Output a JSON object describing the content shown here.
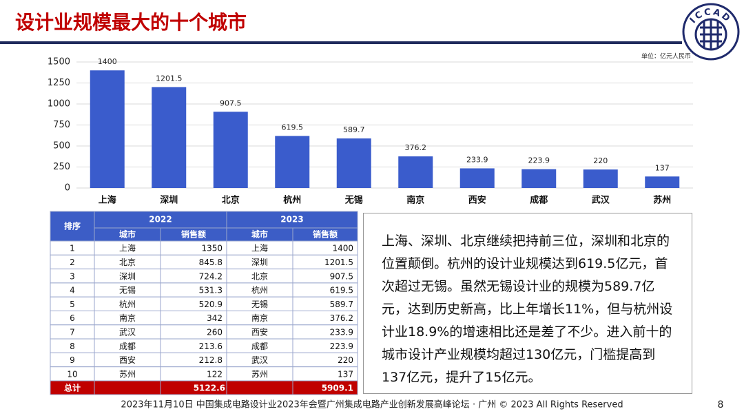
{
  "header": {
    "title": "设计业规模最大的十个城市",
    "logo": "ICCAD"
  },
  "chart_data": {
    "type": "bar",
    "unit": "单位：亿元人民币",
    "categories": [
      "上海",
      "深圳",
      "北京",
      "杭州",
      "无锡",
      "南京",
      "西安",
      "成都",
      "武汉",
      "苏州"
    ],
    "values": [
      1400,
      1201.5,
      907.5,
      619.5,
      589.7,
      376.2,
      233.9,
      223.9,
      220,
      137
    ],
    "color": "#3a5ccc",
    "ylim": [
      0,
      1500
    ],
    "yticks": [
      0,
      250,
      500,
      750,
      1000,
      1250,
      1500
    ],
    "grid": true
  },
  "table": {
    "rank_header": "排序",
    "years": [
      "2022",
      "2023"
    ],
    "sub_headers": [
      "城市",
      "销售额",
      "城市",
      "销售额"
    ],
    "rows": [
      [
        1,
        "上海",
        1350,
        "上海",
        1400
      ],
      [
        2,
        "北京",
        845.8,
        "深圳",
        1201.5
      ],
      [
        3,
        "深圳",
        724.2,
        "北京",
        907.5
      ],
      [
        4,
        "无锡",
        531.3,
        "杭州",
        619.5
      ],
      [
        5,
        "杭州",
        520.9,
        "无锡",
        589.7
      ],
      [
        6,
        "南京",
        342,
        "南京",
        376.2
      ],
      [
        7,
        "武汉",
        260,
        "西安",
        233.9
      ],
      [
        8,
        "成都",
        213.6,
        "成都",
        223.9
      ],
      [
        9,
        "西安",
        212.8,
        "武汉",
        220
      ],
      [
        10,
        "苏州",
        122,
        "苏州",
        137
      ]
    ],
    "total": [
      "总计",
      5122.6,
      5909.1
    ]
  },
  "text": "上海、深圳、北京继续把持前三位，深圳和北京的位置颠倒。杭州的设计业规模达到619.5亿元，首次超过无锡。虽然无锡设计业的规模为589.7亿元，达到历史新高，比上年增长11%，但与杭州设计业18.9%的增速相比还是差了不少。进入前十的城市设计产业规模均超过130亿元，门槛提高到137亿元，提升了15亿元。",
  "footer": {
    "text": "2023年11月10日 中国集成电路设计业2023年会暨广州集成电路产业创新发展高峰论坛 · 广州 © 2023 All Rights Reserved",
    "page": "8"
  }
}
